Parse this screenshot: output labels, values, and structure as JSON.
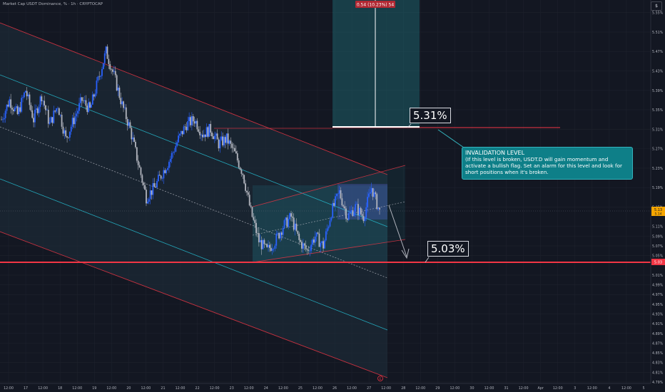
{
  "header": {
    "symbol_title": "Market Cap USDT Dominance, % · 1h · CRYPTOCAP",
    "scale_button": "$"
  },
  "chart_data": {
    "type": "line",
    "title": "Market Cap USDT Dominance, % · 1h · CRYPTOCAP",
    "xlabel": "",
    "ylabel": "",
    "ylim": [
      4.79,
      5.57
    ],
    "y_ticks": [
      "5.55%",
      "5.51%",
      "5.47%",
      "5.43%",
      "5.39%",
      "5.35%",
      "5.31%",
      "5.27%",
      "5.23%",
      "5.19%",
      "5.15%",
      "5.11%",
      "5.09%",
      "5.07%",
      "5.05%",
      "5.01%",
      "4.99%",
      "4.97%",
      "4.95%",
      "4.93%",
      "4.91%",
      "4.89%",
      "4.87%",
      "4.85%",
      "4.83%",
      "4.81%",
      "4.79%"
    ],
    "x_ticks": [
      "12:00",
      "17",
      "12:00",
      "18",
      "12:00",
      "19",
      "12:00",
      "20",
      "12:00",
      "21",
      "12:00",
      "22",
      "12:00",
      "23",
      "12:00",
      "24",
      "12:00",
      "25",
      "12:00",
      "26",
      "12:00",
      "27",
      "12:00",
      "28",
      "12:00",
      "29",
      "12:00",
      "30",
      "12:00",
      "31",
      "12:00",
      "Apr",
      "12:00",
      "3",
      "12:00",
      "4",
      "12:00",
      "5"
    ],
    "price_path": [
      {
        "t": 0,
        "v": 5.33
      },
      {
        "t": 4,
        "v": 5.37
      },
      {
        "t": 8,
        "v": 5.34
      },
      {
        "t": 12,
        "v": 5.39
      },
      {
        "t": 16,
        "v": 5.33
      },
      {
        "t": 20,
        "v": 5.38
      },
      {
        "t": 24,
        "v": 5.32
      },
      {
        "t": 28,
        "v": 5.36
      },
      {
        "t": 32,
        "v": 5.29
      },
      {
        "t": 36,
        "v": 5.33
      },
      {
        "t": 40,
        "v": 5.37
      },
      {
        "t": 44,
        "v": 5.35
      },
      {
        "t": 48,
        "v": 5.41
      },
      {
        "t": 52,
        "v": 5.47
      },
      {
        "t": 56,
        "v": 5.42
      },
      {
        "t": 60,
        "v": 5.36
      },
      {
        "t": 64,
        "v": 5.31
      },
      {
        "t": 68,
        "v": 5.24
      },
      {
        "t": 72,
        "v": 5.17
      },
      {
        "t": 76,
        "v": 5.19
      },
      {
        "t": 80,
        "v": 5.22
      },
      {
        "t": 84,
        "v": 5.25
      },
      {
        "t": 88,
        "v": 5.29
      },
      {
        "t": 92,
        "v": 5.32
      },
      {
        "t": 96,
        "v": 5.33
      },
      {
        "t": 100,
        "v": 5.3
      },
      {
        "t": 104,
        "v": 5.31
      },
      {
        "t": 108,
        "v": 5.28
      },
      {
        "t": 112,
        "v": 5.29
      },
      {
        "t": 116,
        "v": 5.26
      },
      {
        "t": 120,
        "v": 5.22
      },
      {
        "t": 124,
        "v": 5.14
      },
      {
        "t": 128,
        "v": 5.08
      },
      {
        "t": 132,
        "v": 5.06
      },
      {
        "t": 136,
        "v": 5.08
      },
      {
        "t": 140,
        "v": 5.11
      },
      {
        "t": 144,
        "v": 5.13
      },
      {
        "t": 148,
        "v": 5.08
      },
      {
        "t": 152,
        "v": 5.06
      },
      {
        "t": 156,
        "v": 5.09
      },
      {
        "t": 160,
        "v": 5.07
      },
      {
        "t": 164,
        "v": 5.14
      },
      {
        "t": 168,
        "v": 5.18
      },
      {
        "t": 172,
        "v": 5.13
      },
      {
        "t": 176,
        "v": 5.15
      },
      {
        "t": 180,
        "v": 5.13
      },
      {
        "t": 184,
        "v": 5.19
      },
      {
        "t": 188,
        "v": 5.14
      }
    ],
    "levels": [
      {
        "label": "5.31%",
        "value": 5.31,
        "color": "#f23645"
      },
      {
        "label": "5.03%",
        "value": 5.03,
        "color": "#f23645"
      }
    ],
    "current_price_label": "5.13",
    "current_price_sub": "5.14",
    "level_price_label": "5.03",
    "position_tool_label": "0.54 (10.23%) 54",
    "event_marker": "E",
    "annotation": {
      "title": "INVALIDATION LEVEL",
      "body": "(If this level is broken, USDT.D will gain momentum and activate a bullish flag. Set an alarm for this level and look for short positions when it's broken."
    },
    "colors": {
      "up": "#2962ff",
      "down": "#b2b5be",
      "channel_red": "#f23645",
      "channel_teal": "#26c6da",
      "callout": "#0e7f88"
    },
    "grid": true
  }
}
